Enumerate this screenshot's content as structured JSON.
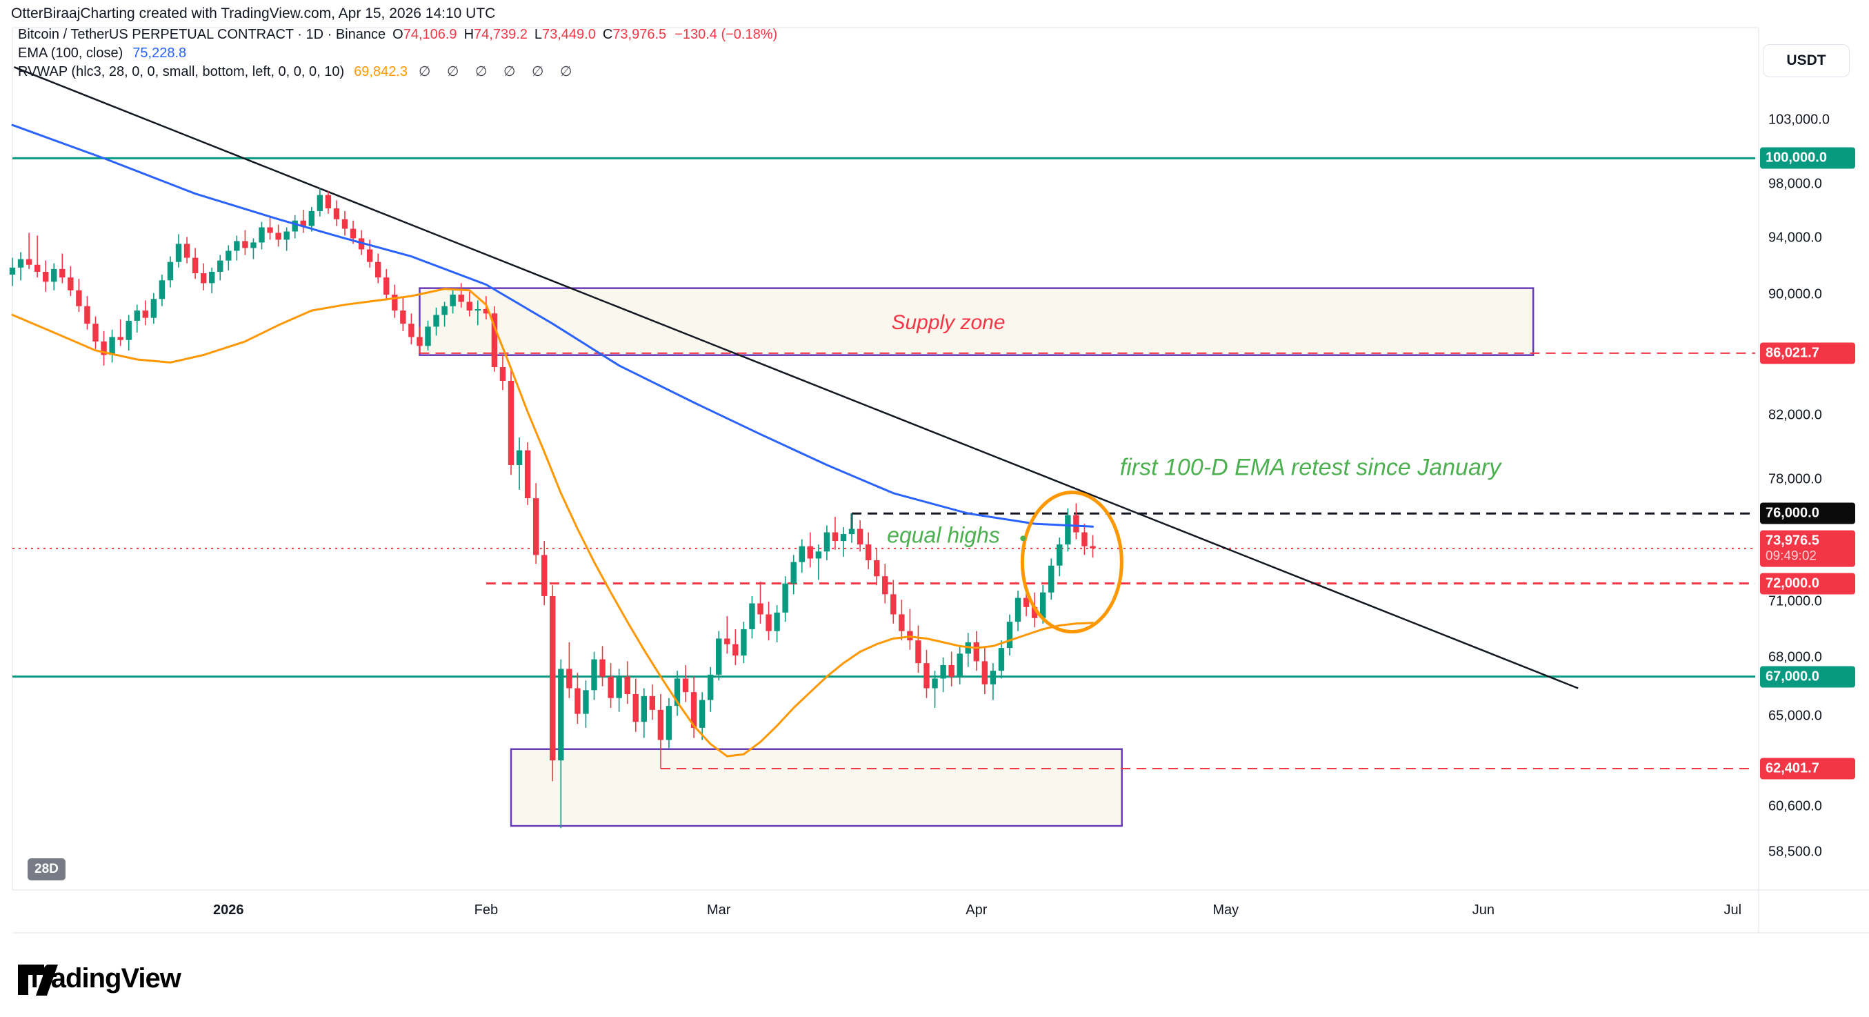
{
  "header": {
    "credit": "OtterBiraajCharting created with TradingView.com, Apr 15, 2026 14:10 UTC"
  },
  "symbol": {
    "title": "Bitcoin / TetherUS PERPETUAL CONTRACT · 1D · Binance",
    "o_label": "O",
    "o": "74,106.9",
    "h_label": "H",
    "h": "74,739.2",
    "l_label": "L",
    "l": "73,449.0",
    "c_label": "C",
    "c": "73,976.5",
    "change": "−130.4 (−0.18%)"
  },
  "indicators": {
    "ema_label": "EMA (100, close)",
    "ema_value": "75,228.8",
    "rvwap_label": "RVWAP (hlc3, 28, 0, 0, small, bottom, left, 0, 0, 0, 10)",
    "rvwap_value": "69,842.3",
    "rvwap_nulls": "∅ ∅ ∅ ∅ ∅ ∅"
  },
  "annotations": {
    "supply_zone": "Supply zone",
    "equal_highs": "equal highs",
    "ema_retest": "first 100-D EMA retest since January"
  },
  "price_axis": {
    "currency": "USDT",
    "plain_labels": [
      103000,
      98000,
      94000,
      90000,
      82000,
      78000,
      71000,
      68000,
      65000,
      60600,
      58500
    ],
    "badges": [
      {
        "text": "100,000.0",
        "price": 100000,
        "bg": "#089981"
      },
      {
        "text": "86,021.7",
        "price": 86021.7,
        "bg": "#f23645"
      },
      {
        "text": "76,000.0",
        "price": 76000,
        "bg": "#0b0b0b"
      },
      {
        "text": "73,976.5",
        "price": 73976.5,
        "bg": "#f23645",
        "sub": "09:49:02"
      },
      {
        "text": "72,000.0",
        "price": 72000,
        "bg": "#f23645"
      },
      {
        "text": "67,000.0",
        "price": 67000,
        "bg": "#089981"
      },
      {
        "text": "62,401.7",
        "price": 62401.7,
        "bg": "#f23645"
      }
    ]
  },
  "time_axis": {
    "labels": [
      {
        "text": "2026",
        "day": 26,
        "bold": true
      },
      {
        "text": "Feb",
        "day": 57
      },
      {
        "text": "Mar",
        "day": 85
      },
      {
        "text": "Apr",
        "day": 116
      },
      {
        "text": "May",
        "day": 146
      },
      {
        "text": "Jun",
        "day": 177
      },
      {
        "text": "Jul",
        "day": 207
      }
    ],
    "interval_badge": "28D"
  },
  "logo": {
    "text": "TradingView"
  },
  "colors": {
    "up": "#089981",
    "down": "#f23645",
    "ema": "#2962ff",
    "rvwap": "#ff9800",
    "level_green": "#089981",
    "level_red": "#f23645",
    "level_black": "#131722",
    "purple": "#673ab7",
    "box_fill": "rgba(250,246,236,0.9)",
    "annotation_green": "#4caf50",
    "annotation_red": "#f23645",
    "circle": "#ff9800",
    "border": "#e0e3eb",
    "text": "#131722"
  },
  "chart_data": {
    "type": "candlestick",
    "title": "BTCUSDT Perpetual 1D",
    "unit": "USDT (thousands)",
    "start_date": "2025-12-06",
    "end_date": "2026-04-15",
    "y_scale": "log",
    "ylim": [
      57000,
      106000
    ],
    "candles": [
      [
        91.4,
        92.6,
        90.6,
        91.9
      ],
      [
        91.9,
        93.0,
        91.0,
        92.5
      ],
      [
        92.5,
        94.4,
        91.8,
        92.1
      ],
      [
        92.1,
        94.2,
        91.2,
        91.6
      ],
      [
        91.6,
        92.4,
        90.2,
        90.9
      ],
      [
        90.9,
        92.2,
        90.3,
        91.8
      ],
      [
        91.8,
        92.9,
        90.8,
        91.2
      ],
      [
        91.2,
        92.0,
        89.9,
        90.3
      ],
      [
        90.3,
        91.1,
        88.8,
        89.2
      ],
      [
        89.2,
        89.9,
        87.6,
        88.0
      ],
      [
        88.0,
        88.5,
        86.3,
        86.8
      ],
      [
        86.8,
        87.5,
        85.2,
        85.9
      ],
      [
        85.9,
        87.6,
        85.4,
        87.1
      ],
      [
        87.1,
        88.3,
        86.5,
        86.9
      ],
      [
        86.9,
        88.6,
        86.2,
        88.2
      ],
      [
        88.2,
        89.3,
        87.4,
        88.9
      ],
      [
        88.9,
        89.6,
        87.9,
        88.4
      ],
      [
        88.4,
        90.1,
        88.0,
        89.7
      ],
      [
        89.7,
        91.4,
        89.2,
        91.0
      ],
      [
        91.0,
        92.7,
        90.5,
        92.3
      ],
      [
        92.3,
        94.3,
        91.9,
        93.6
      ],
      [
        93.6,
        94.1,
        92.2,
        92.6
      ],
      [
        92.6,
        93.3,
        91.1,
        91.5
      ],
      [
        91.5,
        92.2,
        90.3,
        90.8
      ],
      [
        90.8,
        91.9,
        90.1,
        91.6
      ],
      [
        91.6,
        92.8,
        91.0,
        92.4
      ],
      [
        92.4,
        93.5,
        91.7,
        93.1
      ],
      [
        93.1,
        94.2,
        92.4,
        93.8
      ],
      [
        93.8,
        94.6,
        92.8,
        93.3
      ],
      [
        93.3,
        94.0,
        92.5,
        93.7
      ],
      [
        93.7,
        95.2,
        93.2,
        94.8
      ],
      [
        94.8,
        95.6,
        93.9,
        94.4
      ],
      [
        94.4,
        95.0,
        93.4,
        93.9
      ],
      [
        93.9,
        94.8,
        93.1,
        94.5
      ],
      [
        94.5,
        95.7,
        94.0,
        95.3
      ],
      [
        95.3,
        96.1,
        94.4,
        94.9
      ],
      [
        94.9,
        96.3,
        94.5,
        96.0
      ],
      [
        96.0,
        97.7,
        95.6,
        97.2
      ],
      [
        97.2,
        97.5,
        95.8,
        96.2
      ],
      [
        96.2,
        96.8,
        94.9,
        95.4
      ],
      [
        95.4,
        96.0,
        94.2,
        94.7
      ],
      [
        94.7,
        95.3,
        93.6,
        94.0
      ],
      [
        94.0,
        94.6,
        92.8,
        93.2
      ],
      [
        93.2,
        93.9,
        91.9,
        92.3
      ],
      [
        92.3,
        92.9,
        90.8,
        91.2
      ],
      [
        91.2,
        91.8,
        89.6,
        90.0
      ],
      [
        90.0,
        90.7,
        88.4,
        88.9
      ],
      [
        88.9,
        89.8,
        87.5,
        88.0
      ],
      [
        88.0,
        88.7,
        86.6,
        87.1
      ],
      [
        87.1,
        87.8,
        86.0,
        86.5
      ],
      [
        86.5,
        88.2,
        86.2,
        87.8
      ],
      [
        87.8,
        89.1,
        87.2,
        88.6
      ],
      [
        88.6,
        89.5,
        87.8,
        89.2
      ],
      [
        89.2,
        90.4,
        88.7,
        90.0
      ],
      [
        90.0,
        90.8,
        89.1,
        89.5
      ],
      [
        89.5,
        90.2,
        88.5,
        88.9
      ],
      [
        88.9,
        89.6,
        87.9,
        89.0
      ],
      [
        89.0,
        89.9,
        88.3,
        88.7
      ],
      [
        88.7,
        89.2,
        84.8,
        85.1
      ],
      [
        85.1,
        85.9,
        83.6,
        84.2
      ],
      [
        84.2,
        84.9,
        78.3,
        78.9
      ],
      [
        78.9,
        80.6,
        77.4,
        79.8
      ],
      [
        79.8,
        80.3,
        76.5,
        76.9
      ],
      [
        76.9,
        77.8,
        73.1,
        73.6
      ],
      [
        73.6,
        74.4,
        70.8,
        71.3
      ],
      [
        71.3,
        71.9,
        61.8,
        62.8
      ],
      [
        62.8,
        67.9,
        59.6,
        67.4
      ],
      [
        67.4,
        68.8,
        65.9,
        66.4
      ],
      [
        66.4,
        67.2,
        64.6,
        65.1
      ],
      [
        65.1,
        66.8,
        64.4,
        66.3
      ],
      [
        66.3,
        68.3,
        65.8,
        67.9
      ],
      [
        67.9,
        68.6,
        66.5,
        67.0
      ],
      [
        67.0,
        67.7,
        65.4,
        65.9
      ],
      [
        65.9,
        67.4,
        65.2,
        67.0
      ],
      [
        67.0,
        67.8,
        65.6,
        66.1
      ],
      [
        66.1,
        66.9,
        64.2,
        64.7
      ],
      [
        64.7,
        66.4,
        63.9,
        66.0
      ],
      [
        66.0,
        66.6,
        64.8,
        65.3
      ],
      [
        65.3,
        66.1,
        63.3,
        63.8
      ],
      [
        63.8,
        65.9,
        63.4,
        65.5
      ],
      [
        65.5,
        67.3,
        65.0,
        66.9
      ],
      [
        66.9,
        67.6,
        65.7,
        66.2
      ],
      [
        66.2,
        67.0,
        63.9,
        64.4
      ],
      [
        64.4,
        66.2,
        63.8,
        65.8
      ],
      [
        65.8,
        67.5,
        65.2,
        67.1
      ],
      [
        67.1,
        69.4,
        66.8,
        69.0
      ],
      [
        69.0,
        70.2,
        68.2,
        68.7
      ],
      [
        68.7,
        69.5,
        67.6,
        68.1
      ],
      [
        68.1,
        69.9,
        67.7,
        69.5
      ],
      [
        69.5,
        71.3,
        69.0,
        70.9
      ],
      [
        70.9,
        72.1,
        69.8,
        70.3
      ],
      [
        70.3,
        71.0,
        68.9,
        69.4
      ],
      [
        69.4,
        70.8,
        68.8,
        70.4
      ],
      [
        70.4,
        72.4,
        69.9,
        72.0
      ],
      [
        72.0,
        73.6,
        71.4,
        73.2
      ],
      [
        73.2,
        74.5,
        72.6,
        74.1
      ],
      [
        74.1,
        74.9,
        72.9,
        73.4
      ],
      [
        73.4,
        74.2,
        72.2,
        73.8
      ],
      [
        73.8,
        75.3,
        73.3,
        74.9
      ],
      [
        74.9,
        75.8,
        73.9,
        74.4
      ],
      [
        74.4,
        75.2,
        73.5,
        74.8
      ],
      [
        74.8,
        76.0,
        74.3,
        75.1
      ],
      [
        75.1,
        75.6,
        73.8,
        74.2
      ],
      [
        74.2,
        74.9,
        72.8,
        73.3
      ],
      [
        73.3,
        74.0,
        71.9,
        72.4
      ],
      [
        72.4,
        73.1,
        70.9,
        71.4
      ],
      [
        71.4,
        72.2,
        69.8,
        70.3
      ],
      [
        70.3,
        71.1,
        68.9,
        69.4
      ],
      [
        69.4,
        70.6,
        68.4,
        68.9
      ],
      [
        68.9,
        69.7,
        67.2,
        67.7
      ],
      [
        67.7,
        68.4,
        65.9,
        66.4
      ],
      [
        66.4,
        67.3,
        65.4,
        66.9
      ],
      [
        66.9,
        68.0,
        66.2,
        67.6
      ],
      [
        67.6,
        68.3,
        66.5,
        67.0
      ],
      [
        67.0,
        68.6,
        66.6,
        68.2
      ],
      [
        68.2,
        69.3,
        67.5,
        68.8
      ],
      [
        68.8,
        69.4,
        67.3,
        67.8
      ],
      [
        67.8,
        68.5,
        66.1,
        66.6
      ],
      [
        66.6,
        67.7,
        65.8,
        67.3
      ],
      [
        67.3,
        68.9,
        66.9,
        68.5
      ],
      [
        68.5,
        70.3,
        68.1,
        69.9
      ],
      [
        69.9,
        71.6,
        69.4,
        71.2
      ],
      [
        71.2,
        72.0,
        70.2,
        70.7
      ],
      [
        70.7,
        71.5,
        69.6,
        70.1
      ],
      [
        70.1,
        71.9,
        69.8,
        71.5
      ],
      [
        71.5,
        73.4,
        71.1,
        73.0
      ],
      [
        73.0,
        74.6,
        72.4,
        74.2
      ],
      [
        74.2,
        76.3,
        73.8,
        75.9
      ],
      [
        75.9,
        76.6,
        74.5,
        74.9
      ],
      [
        74.9,
        75.4,
        73.6,
        74.1
      ],
      [
        74.1069,
        74.7392,
        73.449,
        73.9765
      ]
    ],
    "ema100": [
      [
        0,
        102.6
      ],
      [
        11,
        100.0
      ],
      [
        22,
        97.3
      ],
      [
        32,
        95.4
      ],
      [
        40,
        94.0
      ],
      [
        48,
        92.7
      ],
      [
        57,
        90.7
      ],
      [
        65,
        88.0
      ],
      [
        73,
        85.2
      ],
      [
        82,
        82.8
      ],
      [
        90,
        80.8
      ],
      [
        98,
        78.9
      ],
      [
        106,
        77.2
      ],
      [
        115,
        76.0
      ],
      [
        123,
        75.4
      ],
      [
        130,
        75.23
      ]
    ],
    "rvwap": [
      [
        0,
        88.6
      ],
      [
        5,
        87.4
      ],
      [
        10,
        86.2
      ],
      [
        15,
        85.6
      ],
      [
        19,
        85.4
      ],
      [
        23,
        85.9
      ],
      [
        28,
        86.8
      ],
      [
        32,
        87.9
      ],
      [
        36,
        88.9
      ],
      [
        40,
        89.3
      ],
      [
        44,
        89.6
      ],
      [
        48,
        89.9
      ],
      [
        52,
        90.4
      ],
      [
        55,
        90.3
      ],
      [
        57,
        89.3
      ],
      [
        58,
        87.8
      ],
      [
        60,
        85.0
      ],
      [
        62,
        82.2
      ],
      [
        64,
        79.7
      ],
      [
        66,
        77.2
      ],
      [
        68,
        75.1
      ],
      [
        70,
        73.2
      ],
      [
        72,
        71.5
      ],
      [
        74,
        69.9
      ],
      [
        76,
        68.4
      ],
      [
        78,
        67.0
      ],
      [
        80,
        65.7
      ],
      [
        82,
        64.5
      ],
      [
        84,
        63.6
      ],
      [
        86,
        63.0
      ],
      [
        88,
        63.1
      ],
      [
        90,
        63.7
      ],
      [
        92,
        64.5
      ],
      [
        94,
        65.4
      ],
      [
        96,
        66.2
      ],
      [
        98,
        67.0
      ],
      [
        100,
        67.7
      ],
      [
        102,
        68.3
      ],
      [
        104,
        68.7
      ],
      [
        106,
        69.0
      ],
      [
        108,
        69.1
      ],
      [
        110,
        69.0
      ],
      [
        112,
        68.8
      ],
      [
        114,
        68.6
      ],
      [
        116,
        68.5
      ],
      [
        118,
        68.6
      ],
      [
        120,
        68.9
      ],
      [
        122,
        69.2
      ],
      [
        124,
        69.5
      ],
      [
        126,
        69.7
      ],
      [
        128,
        69.8
      ],
      [
        130,
        69.84
      ]
    ],
    "levels": [
      {
        "price": 100000,
        "style": "solid",
        "color": "#089981",
        "width": 3,
        "from_day": -25
      },
      {
        "price": 67000,
        "style": "solid",
        "color": "#089981",
        "width": 3,
        "from_day": -25
      },
      {
        "price": 86021.7,
        "style": "dashed",
        "color": "#f23645",
        "width": 2,
        "from_day": 49
      },
      {
        "price": 76000,
        "style": "dashed",
        "color": "#131722",
        "width": 3,
        "from_day": 101,
        "hook": 28
      },
      {
        "price": 73976.5,
        "style": "dotted",
        "color": "#f23645",
        "width": 2,
        "from_day": -25
      },
      {
        "price": 72000,
        "style": "dashed",
        "color": "#f23645",
        "width": 3,
        "from_day": 57
      },
      {
        "price": 62401.7,
        "style": "dashed",
        "color": "#f23645",
        "width": 2,
        "from_day": 78,
        "connector_low": 63.3
      }
    ],
    "zones": [
      {
        "name": "supply",
        "day1": 49,
        "day2": 183,
        "top": 90.45,
        "bottom": 85.89
      },
      {
        "name": "demand",
        "day1": 60,
        "day2": 133.5,
        "top": 63.35,
        "bottom": 59.7
      }
    ],
    "trendline": {
      "from": [
        0.2,
        107.3
      ],
      "to": [
        188.4,
        66.4
      ]
    },
    "ellipse": {
      "day_center": 127.5,
      "price_center": 73.2,
      "rx": 72,
      "ry": 101
    },
    "equal_highs_dot": {
      "day": 121.6,
      "price": 74.55
    }
  }
}
